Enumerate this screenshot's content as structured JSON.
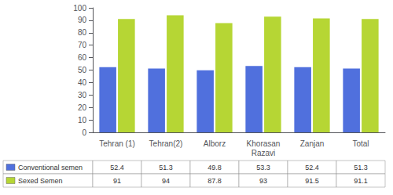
{
  "chart_data": {
    "type": "bar",
    "categories": [
      "Tehran (1)",
      "Tehran(2)",
      "Alborz",
      "Khorasan\nRazavi",
      "Zanjan",
      "Total"
    ],
    "series": [
      {
        "name": "Conventional semen",
        "values": [
          52.4,
          51.3,
          49.8,
          53.3,
          52.4,
          51.3
        ]
      },
      {
        "name": "Sexed Semen",
        "values": [
          91,
          94,
          87.8,
          93,
          91.5,
          91.1
        ]
      }
    ],
    "ylim": [
      0,
      100
    ],
    "yticks": [
      0,
      10,
      20,
      30,
      40,
      50,
      60,
      70,
      80,
      90,
      100
    ],
    "grid": false
  }
}
